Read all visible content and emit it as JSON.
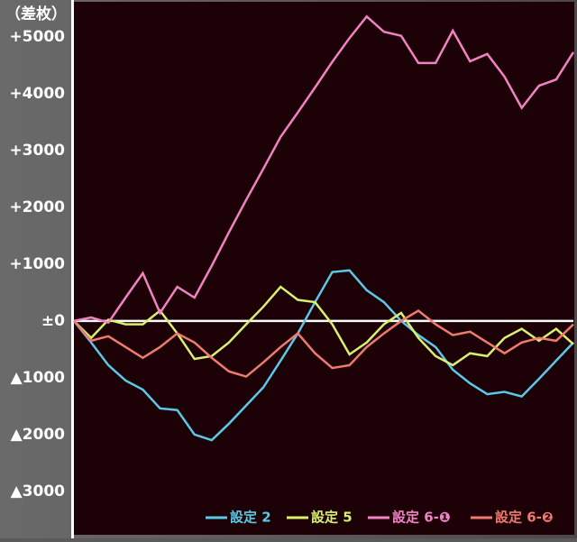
{
  "chart_data": {
    "type": "line",
    "title": "（差枚）",
    "ylim": [
      -3750,
      5650
    ],
    "yticks": [
      {
        "value": 5000,
        "label": "+5000"
      },
      {
        "value": 4000,
        "label": "+4000"
      },
      {
        "value": 3000,
        "label": "+3000"
      },
      {
        "value": 2000,
        "label": "+2000"
      },
      {
        "value": 1000,
        "label": "+1000"
      },
      {
        "value": 0,
        "label": "±0"
      },
      {
        "value": -1000,
        "label": "▲1000"
      },
      {
        "value": -2000,
        "label": "▲2000"
      },
      {
        "value": -3000,
        "label": "▲3000"
      }
    ],
    "series": [
      {
        "name": "設定 2",
        "color": "#5cc8e6",
        "values": [
          0,
          -380,
          -780,
          -1050,
          -1210,
          -1540,
          -1570,
          -2000,
          -2100,
          -1810,
          -1490,
          -1170,
          -700,
          -220,
          330,
          860,
          890,
          540,
          330,
          0,
          -250,
          -460,
          -860,
          -1100,
          -1290,
          -1250,
          -1330,
          -1020,
          -700,
          -380
        ]
      },
      {
        "name": "設定 5",
        "color": "#d9f06e",
        "values": [
          0,
          -300,
          20,
          -60,
          -60,
          180,
          -220,
          -670,
          -620,
          -380,
          -60,
          250,
          600,
          370,
          330,
          -60,
          -590,
          -380,
          -60,
          140,
          -300,
          -620,
          -780,
          -570,
          -620,
          -300,
          -140,
          -350,
          -140,
          -410
        ]
      },
      {
        "name": "設定 6-❶",
        "color": "#f282c4",
        "values": [
          0,
          60,
          -30,
          410,
          840,
          140,
          600,
          410,
          970,
          1560,
          2130,
          2680,
          3240,
          3670,
          4110,
          4560,
          4980,
          5360,
          5090,
          5020,
          4540,
          4540,
          5110,
          4570,
          4700,
          4300,
          3750,
          4140,
          4250,
          4730
        ]
      },
      {
        "name": "設定 6-❷",
        "color": "#f07a70",
        "values": [
          0,
          -350,
          -270,
          -460,
          -650,
          -460,
          -220,
          -380,
          -650,
          -890,
          -980,
          -730,
          -460,
          -220,
          -570,
          -830,
          -780,
          -460,
          -220,
          0,
          180,
          -60,
          -250,
          -190,
          -380,
          -570,
          -380,
          -300,
          -350,
          -60
        ]
      }
    ]
  }
}
